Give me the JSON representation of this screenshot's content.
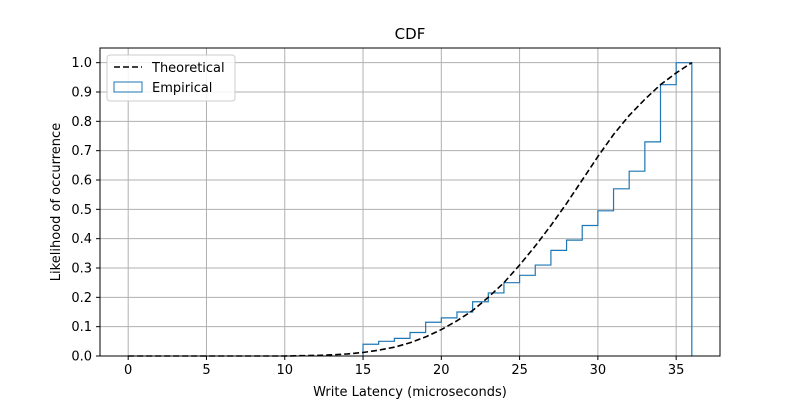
{
  "chart_data": {
    "type": "line",
    "title": "CDF",
    "xlabel": "Write Latency (microseconds)",
    "ylabel": "Likelihood of occurrence",
    "xlim": [
      -1.8,
      37.8
    ],
    "ylim": [
      0,
      1.05
    ],
    "xticks": [
      0,
      5,
      10,
      15,
      20,
      25,
      30,
      35
    ],
    "yticks": [
      0.0,
      0.1,
      0.2,
      0.3,
      0.4,
      0.5,
      0.6,
      0.7,
      0.8,
      0.9,
      1.0
    ],
    "xtick_labels": [
      "0",
      "5",
      "10",
      "15",
      "20",
      "25",
      "30",
      "35"
    ],
    "ytick_labels": [
      "0.0",
      "0.1",
      "0.2",
      "0.3",
      "0.4",
      "0.5",
      "0.6",
      "0.7",
      "0.8",
      "0.9",
      "1.0"
    ],
    "grid": true,
    "legend_position": "top-left",
    "series": [
      {
        "name": "Theoretical",
        "style": "dashed",
        "color": "#000000",
        "x": [
          0,
          2,
          4,
          6,
          8,
          10,
          12,
          13,
          14,
          15,
          16,
          17,
          18,
          19,
          20,
          21,
          22,
          23,
          24,
          25,
          26,
          27,
          28,
          29,
          30,
          31,
          32,
          33,
          34,
          35,
          36
        ],
        "y": [
          0.0,
          0.0,
          0.0,
          0.0,
          0.0,
          0.0,
          0.002,
          0.004,
          0.007,
          0.012,
          0.02,
          0.03,
          0.045,
          0.065,
          0.09,
          0.12,
          0.155,
          0.2,
          0.25,
          0.31,
          0.375,
          0.445,
          0.52,
          0.6,
          0.68,
          0.755,
          0.82,
          0.875,
          0.925,
          0.965,
          1.0
        ]
      },
      {
        "name": "Empirical",
        "style": "step",
        "color": "#1f77b4",
        "bin_edges": [
          15,
          16,
          17,
          18,
          19,
          20,
          21,
          22,
          23,
          24,
          25,
          26,
          27,
          28,
          29,
          30,
          31,
          32,
          33,
          34,
          35,
          36
        ],
        "cumulative": [
          0.04,
          0.05,
          0.06,
          0.08,
          0.115,
          0.13,
          0.15,
          0.185,
          0.215,
          0.25,
          0.275,
          0.31,
          0.36,
          0.395,
          0.445,
          0.495,
          0.57,
          0.63,
          0.73,
          0.925,
          1.0
        ]
      }
    ]
  }
}
